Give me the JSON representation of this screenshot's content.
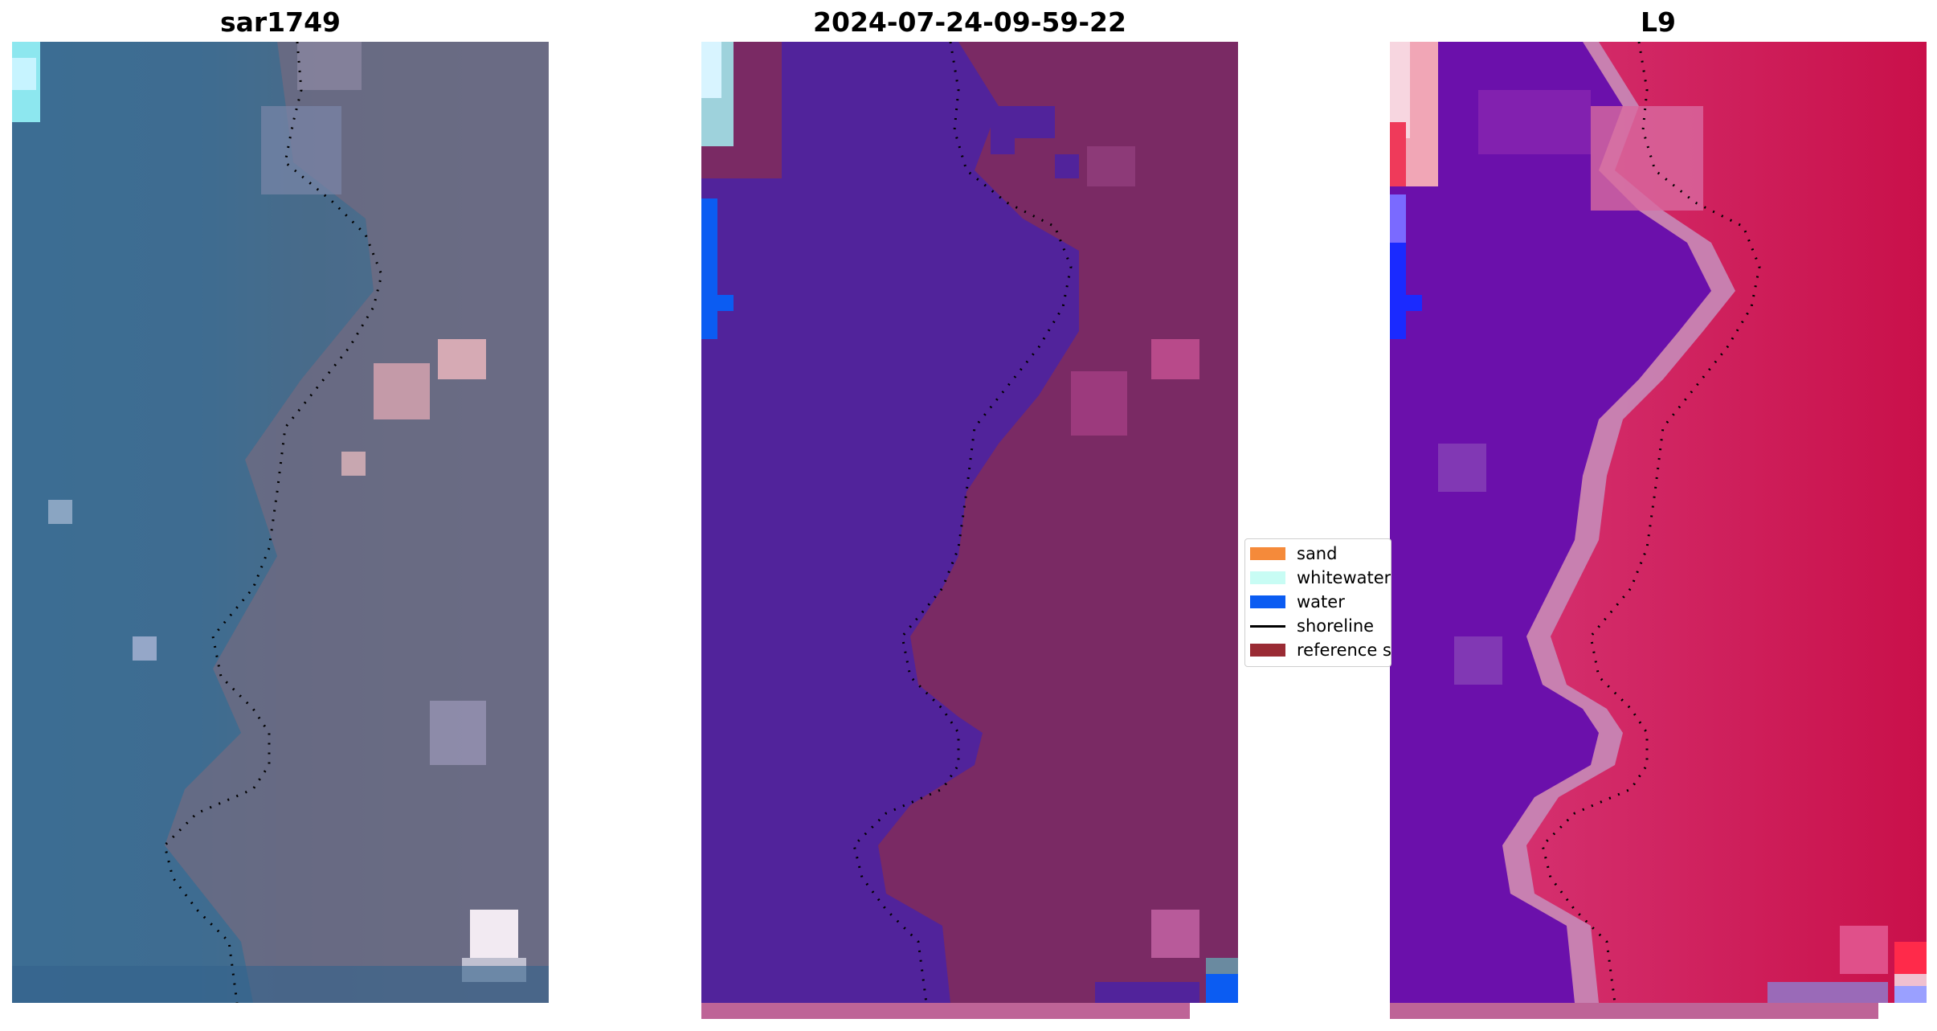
{
  "panels": [
    {
      "title": "sar1749",
      "kind": "rgb"
    },
    {
      "title": "2024-07-24-09-59-22",
      "kind": "classified"
    },
    {
      "title": "L9",
      "kind": "false-color"
    }
  ],
  "legend": {
    "items": [
      {
        "label": "sand",
        "color": "#f58a3a",
        "kind": "patch"
      },
      {
        "label": "whitewater",
        "color": "#c8fcf4",
        "kind": "patch"
      },
      {
        "label": "water",
        "color": "#0b5cf2",
        "kind": "patch"
      },
      {
        "label": "shoreline",
        "color": "#000000",
        "kind": "line"
      },
      {
        "label": "reference shoreline",
        "color": "#9a2b34",
        "kind": "patch"
      }
    ]
  },
  "colors": {
    "rgb_water": "#3d6a8e",
    "rgb_land": "#5d6480",
    "classified_water": "#51239b",
    "classified_land": "#7a2a64",
    "falsecolor_water": "#6b10ab",
    "falsecolor_land": "#c9104a",
    "bottom_bar": "#be6497"
  }
}
